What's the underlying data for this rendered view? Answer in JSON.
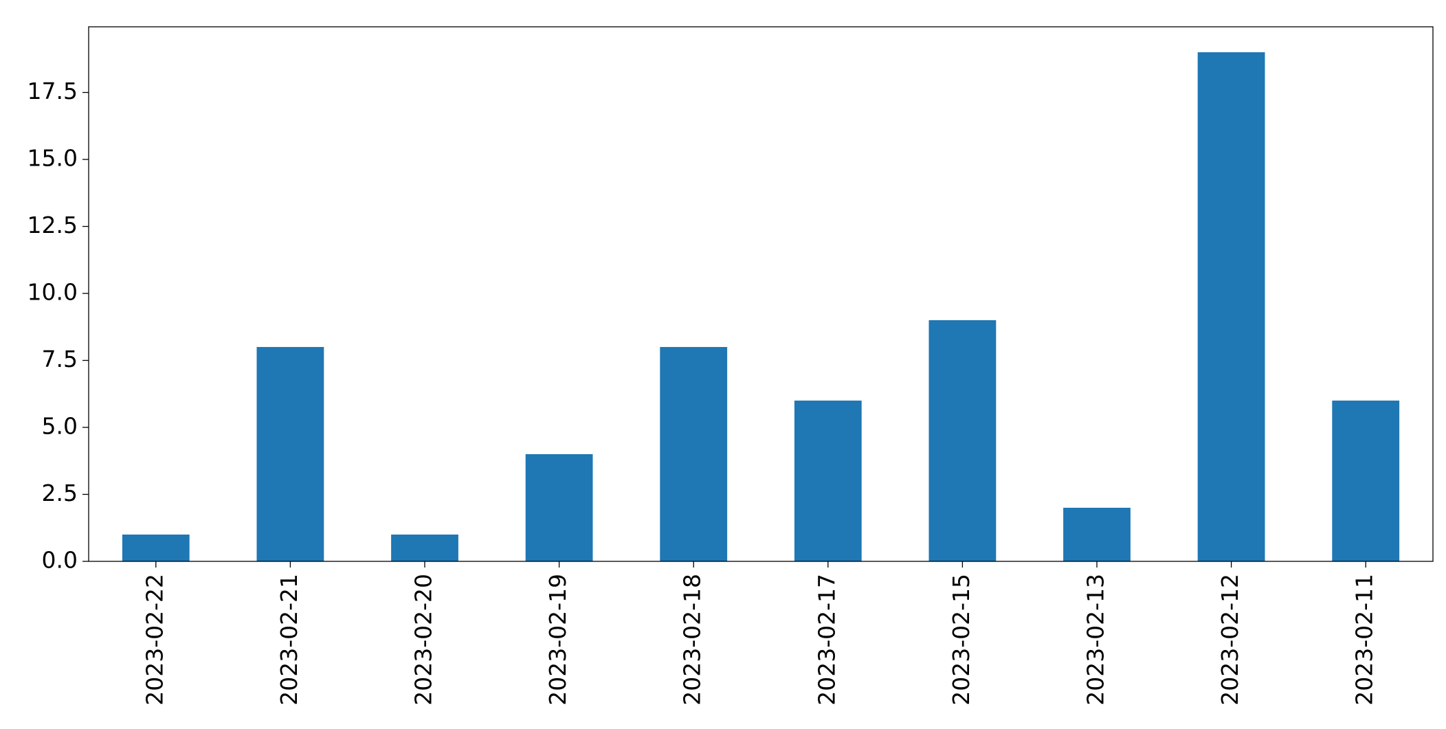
{
  "chart_data": {
    "type": "bar",
    "categories": [
      "2023-02-22",
      "2023-02-21",
      "2023-02-20",
      "2023-02-19",
      "2023-02-18",
      "2023-02-17",
      "2023-02-15",
      "2023-02-13",
      "2023-02-12",
      "2023-02-11"
    ],
    "values": [
      1,
      8,
      1,
      4,
      8,
      6,
      9,
      2,
      19,
      6
    ],
    "color": "#1f77b4",
    "ylim": [
      0,
      19.95
    ],
    "yticks": [
      {
        "value": 0,
        "label": "0.0"
      },
      2.5,
      {
        "value": 5,
        "label": "5.0"
      },
      7.5,
      {
        "value": 10,
        "label": "10.0"
      },
      12.5,
      {
        "value": 15,
        "label": "15.0"
      },
      17.5
    ],
    "grid": false
  }
}
